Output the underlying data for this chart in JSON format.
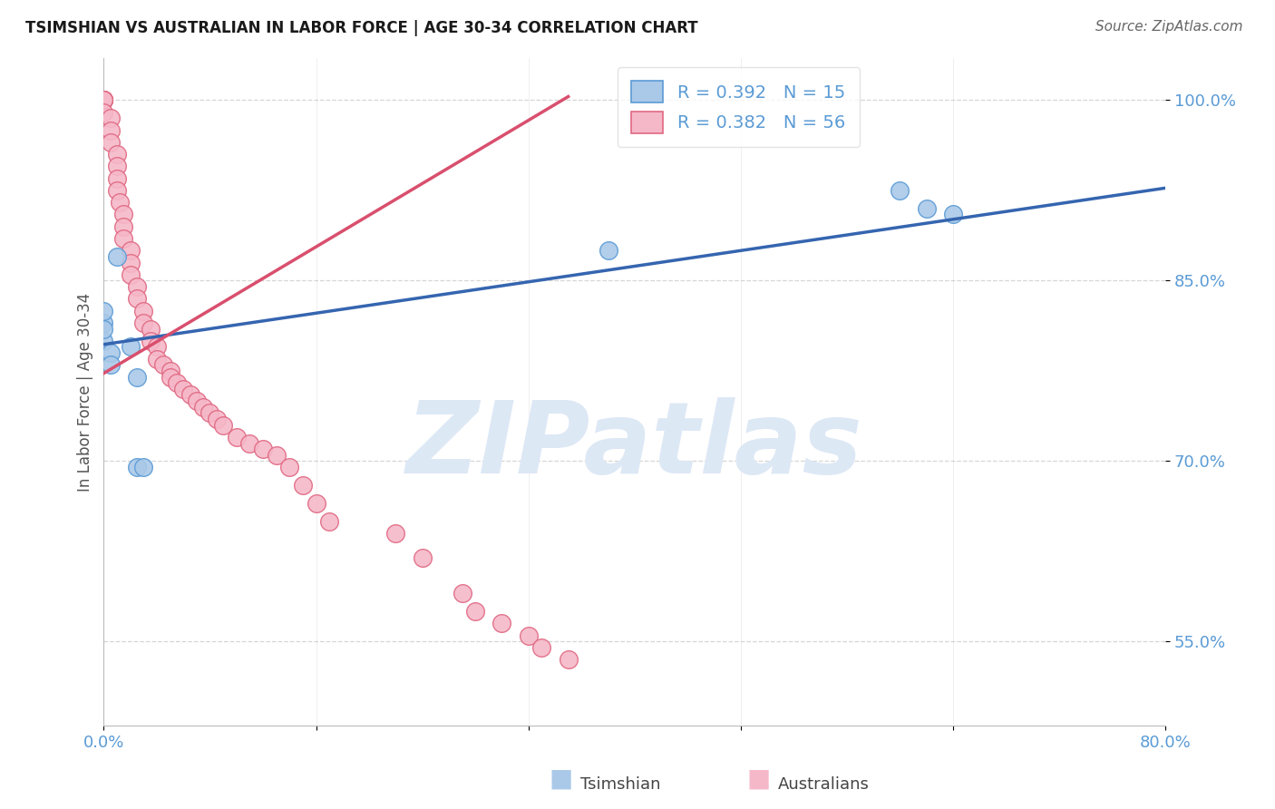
{
  "title": "TSIMSHIAN VS AUSTRALIAN IN LABOR FORCE | AGE 30-34 CORRELATION CHART",
  "source": "Source: ZipAtlas.com",
  "ylabel": "In Labor Force | Age 30-34",
  "xlim": [
    0.0,
    0.8
  ],
  "ylim": [
    0.48,
    1.035
  ],
  "xticks": [
    0.0,
    0.16,
    0.32,
    0.48,
    0.64,
    0.8
  ],
  "xticklabels": [
    "0.0%",
    "",
    "",
    "",
    "",
    "80.0%"
  ],
  "yticks": [
    0.55,
    0.7,
    0.85,
    1.0
  ],
  "yticklabels": [
    "55.0%",
    "70.0%",
    "85.0%",
    "100.0%"
  ],
  "grid_color": "#cccccc",
  "background_color": "#ffffff",
  "tsimshian_color": "#aac9e8",
  "tsimshian_edge_color": "#5b9bd5",
  "australian_color": "#f5b8c8",
  "australian_edge_color": "#e06882",
  "tsimshian_R": 0.392,
  "tsimshian_N": 15,
  "australian_R": 0.382,
  "australian_N": 56,
  "tsimshian_x": [
    0.0,
    0.0,
    0.0,
    0.0,
    0.005,
    0.005,
    0.01,
    0.02,
    0.025,
    0.025,
    0.03,
    0.6,
    0.62,
    0.64,
    0.38
  ],
  "tsimshian_y": [
    0.8,
    0.815,
    0.825,
    0.81,
    0.79,
    0.78,
    0.87,
    0.795,
    0.77,
    0.695,
    0.695,
    0.925,
    0.91,
    0.905,
    0.875
  ],
  "australian_x": [
    0.0,
    0.0,
    0.0,
    0.0,
    0.0,
    0.0,
    0.0,
    0.005,
    0.005,
    0.005,
    0.01,
    0.01,
    0.01,
    0.01,
    0.012,
    0.015,
    0.015,
    0.015,
    0.02,
    0.02,
    0.02,
    0.025,
    0.025,
    0.03,
    0.03,
    0.035,
    0.035,
    0.04,
    0.04,
    0.045,
    0.05,
    0.05,
    0.055,
    0.06,
    0.065,
    0.07,
    0.075,
    0.08,
    0.085,
    0.09,
    0.1,
    0.11,
    0.12,
    0.13,
    0.14,
    0.15,
    0.16,
    0.17,
    0.22,
    0.24,
    0.27,
    0.28,
    0.3,
    0.32,
    0.33,
    0.35
  ],
  "australian_y": [
    1.0,
    1.0,
    1.0,
    1.0,
    1.0,
    1.0,
    0.99,
    0.985,
    0.975,
    0.965,
    0.955,
    0.945,
    0.935,
    0.925,
    0.915,
    0.905,
    0.895,
    0.885,
    0.875,
    0.865,
    0.855,
    0.845,
    0.835,
    0.825,
    0.815,
    0.81,
    0.8,
    0.795,
    0.785,
    0.78,
    0.775,
    0.77,
    0.765,
    0.76,
    0.755,
    0.75,
    0.745,
    0.74,
    0.735,
    0.73,
    0.72,
    0.715,
    0.71,
    0.705,
    0.695,
    0.68,
    0.665,
    0.65,
    0.64,
    0.62,
    0.59,
    0.575,
    0.565,
    0.555,
    0.545,
    0.535
  ],
  "blue_line_x": [
    0.0,
    0.8
  ],
  "blue_line_y": [
    0.797,
    0.927
  ],
  "pink_line_x": [
    0.0,
    0.35
  ],
  "pink_line_y": [
    0.773,
    1.003
  ],
  "blue_line_color": "#3565b0",
  "pink_line_color": "#d94f6e",
  "watermark_text": "ZIPatlas",
  "watermark_color": "#dde8f5",
  "bottom_legend_tsimshian": "Tsimshian",
  "bottom_legend_australians": "Australians"
}
